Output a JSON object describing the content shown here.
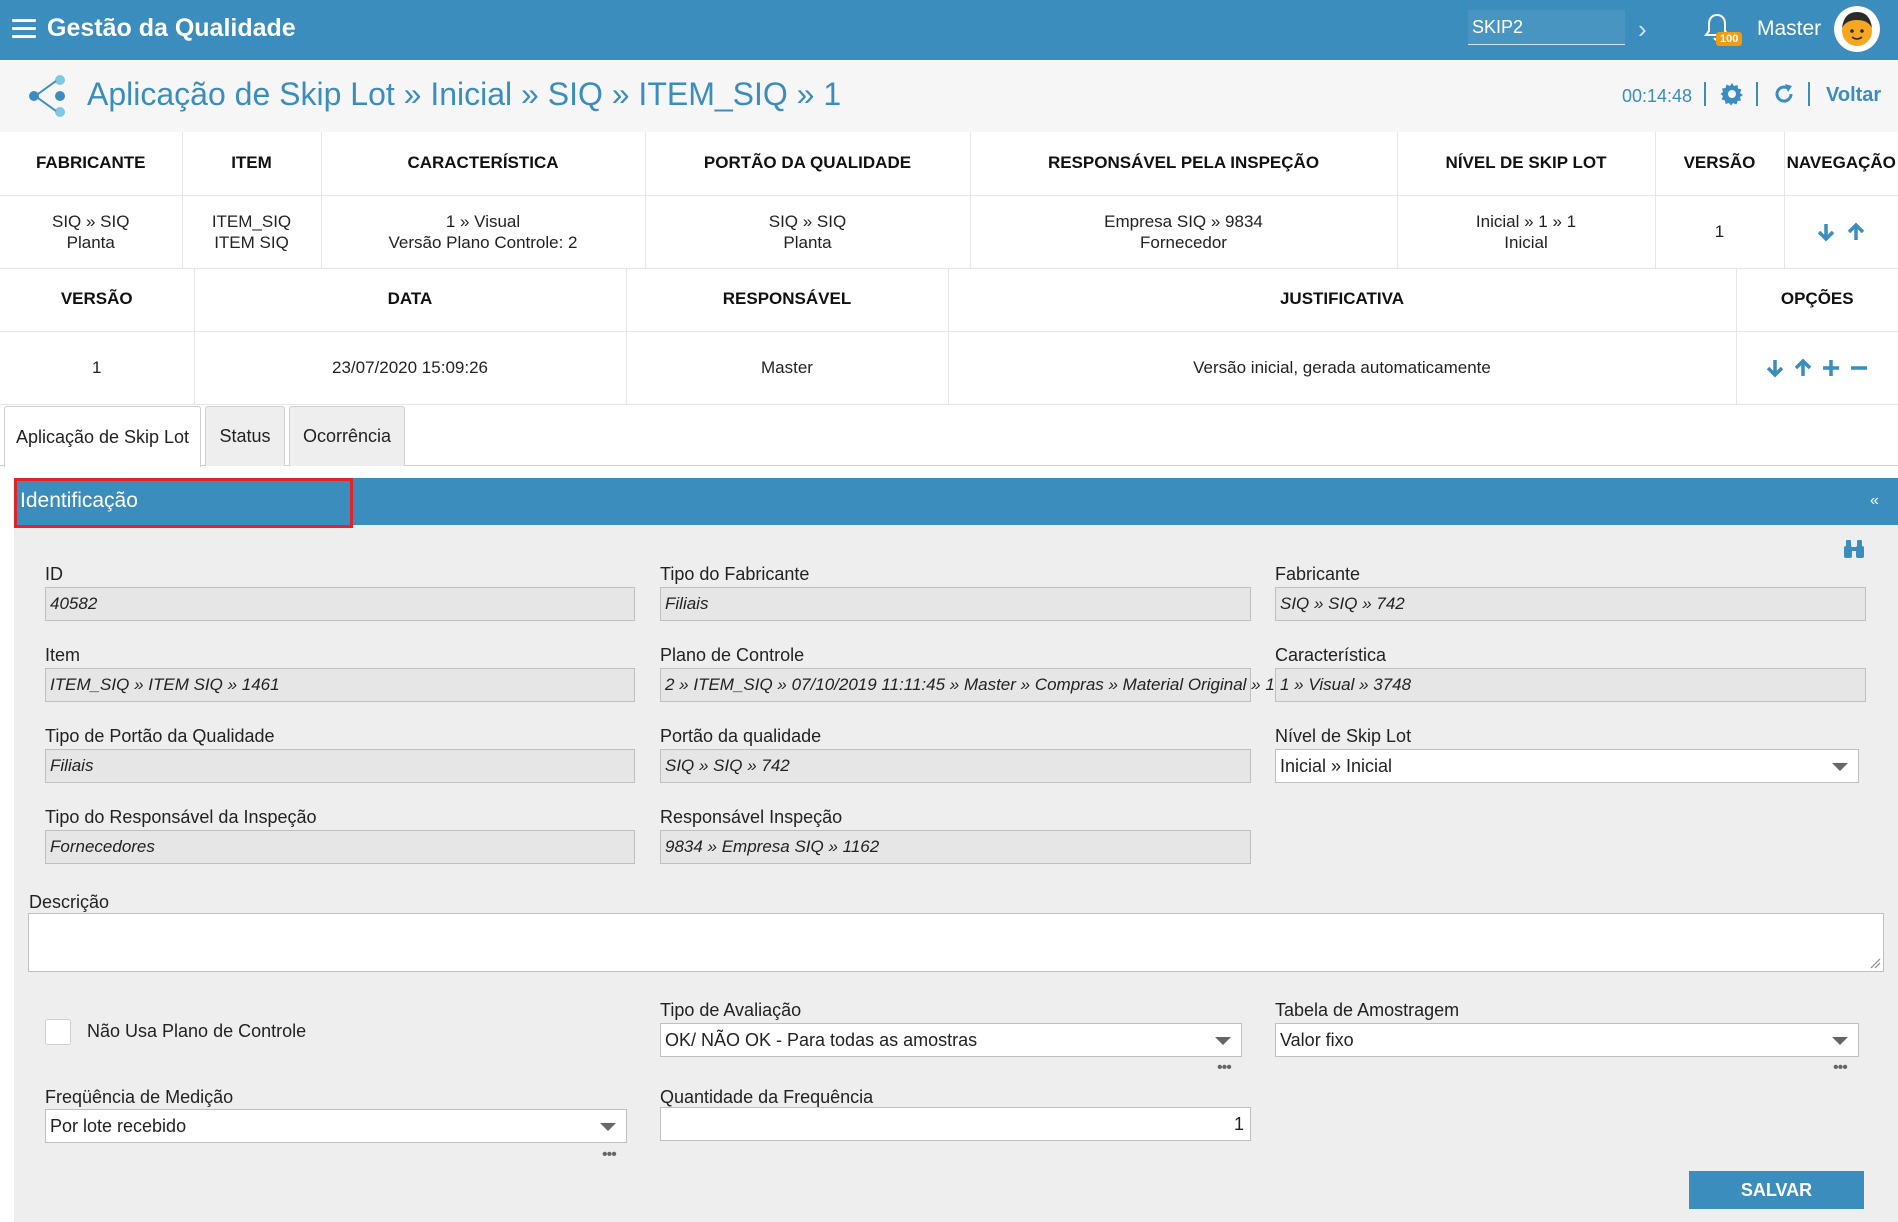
{
  "app": {
    "title": "Gestão da Qualidade",
    "search_value": "SKIP2",
    "notification_count": "100",
    "user_name": "Master"
  },
  "page": {
    "title": "Aplicação de Skip Lot » Inicial » SIQ » ITEM_SIQ » 1",
    "timer": "00:14:48",
    "back_label": "Voltar"
  },
  "summary": {
    "headers": [
      "FABRICANTE",
      "ITEM",
      "CARACTERÍSTICA",
      "PORTÃO DA QUALIDADE",
      "RESPONSÁVEL PELA INSPEÇÃO",
      "NÍVEL DE SKIP LOT",
      "VERSÃO",
      "NAVEGAÇÃO"
    ],
    "row": {
      "fabricante": [
        "SIQ » SIQ",
        "Planta"
      ],
      "item": [
        "ITEM_SIQ",
        "ITEM SIQ"
      ],
      "caracteristica": [
        "1 » Visual",
        "Versão Plano Controle: 2"
      ],
      "portao": [
        "SIQ » SIQ",
        "Planta"
      ],
      "responsavel": [
        "Empresa SIQ » 9834",
        "Fornecedor"
      ],
      "nivel": [
        "Inicial » 1 » 1",
        "Inicial"
      ],
      "versao": "1"
    }
  },
  "versions": {
    "headers": [
      "VERSÃO",
      "DATA",
      "RESPONSÁVEL",
      "JUSTIFICATIVA",
      "OPÇÕES"
    ],
    "rows": [
      {
        "versao": "1",
        "data": "23/07/2020 15:09:26",
        "responsavel": "Master",
        "justificativa": "Versão inicial, gerada automaticamente"
      }
    ]
  },
  "tabs": [
    "Aplicação de Skip Lot",
    "Status",
    "Ocorrência"
  ],
  "panel": {
    "title": "Identificação",
    "collapse": "«"
  },
  "form": {
    "id": {
      "label": "ID",
      "value": "40582"
    },
    "tipo_fabricante": {
      "label": "Tipo do Fabricante",
      "value": "Filiais"
    },
    "fabricante": {
      "label": "Fabricante",
      "value": "SIQ  »  SIQ  » 742"
    },
    "item": {
      "label": "Item",
      "value": "ITEM_SIQ » ITEM SIQ » 1461"
    },
    "plano_controle": {
      "label": "Plano de Controle",
      "value": "2 » ITEM_SIQ » 07/10/2019 11:11:45 » Master » Compras » Material Original » 1"
    },
    "caracteristica": {
      "label": "Característica",
      "value": "1 » Visual » 3748"
    },
    "tipo_portao": {
      "label": "Tipo de Portão da Qualidade",
      "value": "Filiais"
    },
    "portao": {
      "label": "Portão da qualidade",
      "value": "SIQ  »  SIQ  » 742"
    },
    "nivel_skip": {
      "label": "Nível de Skip Lot",
      "value": "Inicial » Inicial"
    },
    "tipo_responsavel": {
      "label": "Tipo do Responsável da Inspeção",
      "value": "Fornecedores"
    },
    "responsavel": {
      "label": "Responsável Inspeção",
      "value": "9834 » Empresa SIQ » 1162"
    },
    "descricao": {
      "label": "Descrição",
      "value": ""
    },
    "nao_usa_plano": {
      "label": "Não Usa Plano de Controle",
      "checked": false
    },
    "tipo_avaliacao": {
      "label": "Tipo de Avaliação",
      "value": "OK/ NÃO OK  - Para todas as amostras"
    },
    "tabela_amostragem": {
      "label": "Tabela de Amostragem",
      "value": "Valor fixo"
    },
    "frequencia": {
      "label": "Freqüência de Medição",
      "value": "Por lote recebido"
    },
    "qtd_frequencia": {
      "label": "Quantidade da Frequência",
      "value": "1"
    },
    "more": "•••",
    "save_label": "SALVAR"
  },
  "colors": {
    "primary": "#3a8dbd",
    "highlight_border": "#e0242a",
    "badge": "#f39c12"
  }
}
